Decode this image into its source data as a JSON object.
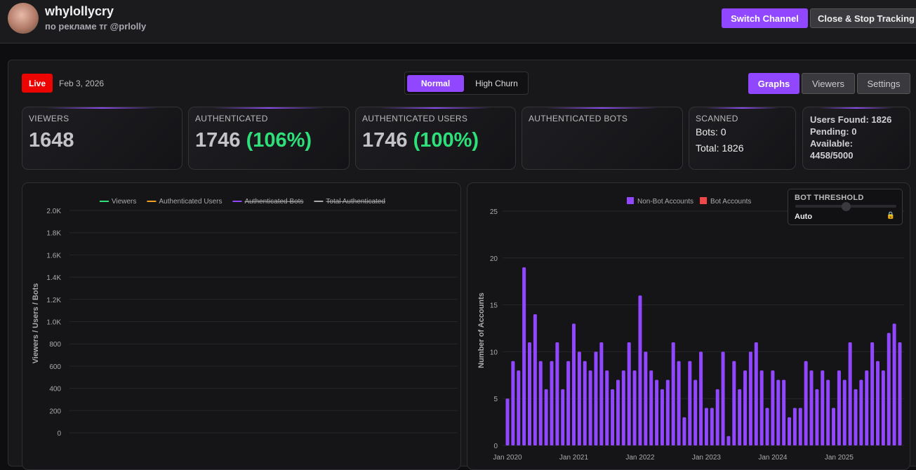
{
  "header": {
    "channel_name": "whylollycry",
    "channel_subtitle": "по рекламе тг @prlolly",
    "switch_label": "Switch Channel",
    "close_label": "Close & Stop Tracking"
  },
  "status": {
    "live_label": "Live",
    "date": "Feb 3, 2026"
  },
  "mode": {
    "normal": "Normal",
    "high_churn": "High Churn"
  },
  "tabs": {
    "graphs": "Graphs",
    "viewers": "Viewers",
    "settings": "Settings"
  },
  "stats": {
    "viewers_label": "VIEWERS",
    "viewers": "1648",
    "auth_label": "AUTHENTICATED",
    "auth": "1746",
    "auth_pct": "(106%)",
    "auth_users_label": "AUTHENTICATED USERS",
    "auth_users": "1746",
    "auth_users_pct": "(100%)",
    "auth_bots_label": "AUTHENTICATED BOTS",
    "scanned_label": "SCANNED",
    "bots": "Bots: 0",
    "total": "Total: 1826",
    "users_found": "Users Found: 1826",
    "pending": "Pending: 0",
    "available": "Available:",
    "available_val": "4458/5000"
  },
  "threshold": {
    "label": "BOT THRESHOLD",
    "value": "Auto",
    "level": 0.5
  },
  "colors": {
    "accent": "#9147ff",
    "live": "#eb0400",
    "green": "#2ee07a",
    "bot": "#f04848"
  },
  "chart_data": [
    {
      "type": "line",
      "title": "",
      "ylabel": "Viewers / Users / Bots",
      "ylim": [
        0,
        2000
      ],
      "yticks": [
        "0",
        "200",
        "400",
        "600",
        "800",
        "1.0K",
        "1.2K",
        "1.4K",
        "1.6K",
        "1.8K",
        "2.0K"
      ],
      "legend": [
        {
          "name": "Viewers",
          "color": "#2ee07a",
          "hidden": false
        },
        {
          "name": "Authenticated Users",
          "color": "#f0a020",
          "hidden": false
        },
        {
          "name": "Authenticated Bots",
          "color": "#9147ff",
          "hidden": true
        },
        {
          "name": "Total Authenticated",
          "color": "#aaaaaa",
          "hidden": true
        }
      ],
      "series": []
    },
    {
      "type": "bar",
      "ylabel": "Number of Accounts",
      "ylim": [
        0,
        25
      ],
      "yticks": [
        "0",
        "5",
        "10",
        "15",
        "20",
        "25"
      ],
      "xticks": [
        "Jan 2020",
        "Jan 2021",
        "Jan 2022",
        "Jan 2023",
        "Jan 2024",
        "Jan 2025"
      ],
      "legend": [
        {
          "name": "Non-Bot Accounts",
          "color": "#9147ff"
        },
        {
          "name": "Bot Accounts",
          "color": "#f04848"
        }
      ],
      "x_start": "Jan 2020",
      "x_end": "Dec 2025",
      "series": [
        {
          "name": "Non-Bot Accounts",
          "values": [
            5,
            9,
            8,
            19,
            11,
            14,
            9,
            6,
            9,
            11,
            6,
            9,
            13,
            10,
            9,
            8,
            10,
            11,
            8,
            6,
            7,
            8,
            11,
            8,
            16,
            10,
            8,
            7,
            6,
            7,
            11,
            9,
            3,
            9,
            7,
            10,
            4,
            4,
            6,
            10,
            1,
            9,
            6,
            8,
            10,
            11,
            8,
            4,
            8,
            7,
            7,
            3,
            4,
            4,
            9,
            8,
            6,
            8,
            7,
            4,
            8,
            7,
            11,
            6,
            7,
            8,
            11,
            9,
            8,
            12,
            13,
            11
          ]
        },
        {
          "name": "Bot Accounts",
          "values": []
        }
      ]
    }
  ]
}
